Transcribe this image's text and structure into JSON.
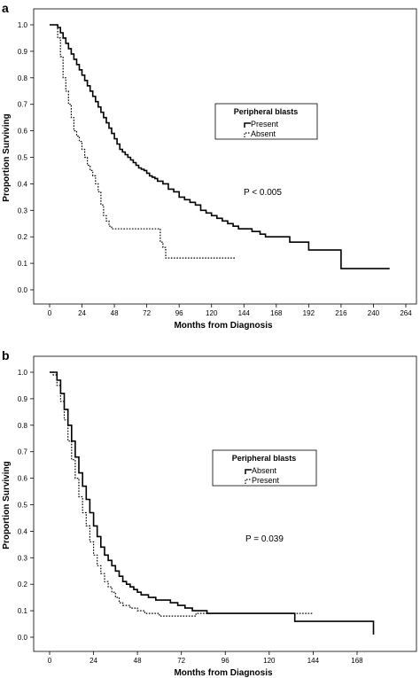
{
  "chart_data": [
    {
      "panel": "a",
      "type": "line",
      "subtype": "kaplan-meier step",
      "xlabel": "Months from Diagnosis",
      "ylabel": "Proportion Surviving",
      "xticks": [
        "0",
        "24",
        "48",
        "72",
        "96",
        "120",
        "144",
        "168",
        "192",
        "216",
        "240",
        "264"
      ],
      "yticks": [
        "0.0",
        "0.1",
        "0.2",
        "0.3",
        "0.4",
        "0.5",
        "0.6",
        "0.7",
        "0.8",
        "0.9",
        "1.0"
      ],
      "xlim": [
        0,
        264
      ],
      "ylim": [
        0,
        1.0
      ],
      "legend": {
        "title": "Peripheral blasts",
        "placement": "center-right"
      },
      "annotation": "P < 0.005",
      "series": [
        {
          "name": "Present",
          "style": "solid",
          "color": "#000000",
          "x": [
            0,
            4,
            6,
            8,
            10,
            12,
            14,
            16,
            18,
            20,
            22,
            24,
            26,
            28,
            30,
            32,
            34,
            36,
            38,
            40,
            42,
            44,
            46,
            48,
            50,
            52,
            54,
            56,
            58,
            60,
            62,
            64,
            66,
            68,
            70,
            72,
            74,
            76,
            78,
            80,
            84,
            88,
            92,
            96,
            100,
            104,
            108,
            112,
            116,
            120,
            124,
            128,
            132,
            136,
            140,
            144,
            150,
            156,
            160,
            168,
            178,
            184,
            192,
            206,
            214,
            216,
            220,
            230,
            240,
            246,
            252
          ],
          "y": [
            1.0,
            1.0,
            0.99,
            0.97,
            0.95,
            0.93,
            0.91,
            0.89,
            0.87,
            0.85,
            0.83,
            0.81,
            0.79,
            0.77,
            0.75,
            0.73,
            0.71,
            0.69,
            0.67,
            0.65,
            0.63,
            0.61,
            0.59,
            0.57,
            0.55,
            0.53,
            0.52,
            0.51,
            0.5,
            0.49,
            0.48,
            0.47,
            0.46,
            0.455,
            0.45,
            0.44,
            0.43,
            0.425,
            0.42,
            0.41,
            0.4,
            0.38,
            0.37,
            0.35,
            0.34,
            0.33,
            0.32,
            0.3,
            0.29,
            0.28,
            0.27,
            0.26,
            0.25,
            0.24,
            0.23,
            0.23,
            0.22,
            0.21,
            0.2,
            0.2,
            0.18,
            0.18,
            0.15,
            0.15,
            0.15,
            0.08,
            0.08,
            0.08,
            0.08,
            0.08,
            0.08
          ]
        },
        {
          "name": "Absent",
          "style": "dotted",
          "color": "#000000",
          "x": [
            0,
            4,
            6,
            8,
            10,
            12,
            14,
            16,
            18,
            20,
            22,
            24,
            26,
            28,
            30,
            32,
            34,
            36,
            38,
            40,
            42,
            44,
            46,
            48,
            56,
            60,
            70,
            78,
            80,
            82,
            84,
            86,
            96,
            110,
            120,
            132,
            138
          ],
          "y": [
            1.0,
            1.0,
            0.95,
            0.88,
            0.8,
            0.75,
            0.7,
            0.65,
            0.6,
            0.58,
            0.56,
            0.53,
            0.5,
            0.47,
            0.45,
            0.43,
            0.4,
            0.37,
            0.32,
            0.28,
            0.26,
            0.24,
            0.23,
            0.23,
            0.23,
            0.23,
            0.23,
            0.23,
            0.23,
            0.18,
            0.16,
            0.12,
            0.12,
            0.12,
            0.12,
            0.12,
            0.12
          ]
        }
      ]
    },
    {
      "panel": "b",
      "type": "line",
      "subtype": "kaplan-meier step",
      "xlabel": "Months from Diagnosis",
      "ylabel": "Proportion Surviving",
      "xticks": [
        "0",
        "24",
        "48",
        "72",
        "96",
        "120",
        "144",
        "168"
      ],
      "yticks": [
        "0.0",
        "0.1",
        "0.2",
        "0.3",
        "0.4",
        "0.5",
        "0.6",
        "0.7",
        "0.8",
        "0.9",
        "1.0"
      ],
      "xlim": [
        0,
        184
      ],
      "ylim": [
        0,
        1.0
      ],
      "legend": {
        "title": "Peripheral blasts",
        "placement": "center-right"
      },
      "annotation": "P = 0.039",
      "series": [
        {
          "name": "Absent",
          "style": "solid",
          "color": "#000000",
          "x": [
            0,
            2,
            4,
            6,
            8,
            10,
            12,
            14,
            16,
            18,
            20,
            22,
            24,
            26,
            28,
            30,
            32,
            34,
            36,
            38,
            40,
            42,
            44,
            46,
            48,
            50,
            54,
            58,
            62,
            66,
            70,
            74,
            78,
            82,
            86,
            90,
            96,
            104,
            112,
            120,
            128,
            132,
            134,
            140,
            150,
            160,
            170,
            176,
            177
          ],
          "y": [
            1.0,
            1.0,
            0.97,
            0.92,
            0.86,
            0.8,
            0.74,
            0.68,
            0.62,
            0.57,
            0.52,
            0.47,
            0.42,
            0.38,
            0.34,
            0.31,
            0.29,
            0.27,
            0.25,
            0.23,
            0.21,
            0.2,
            0.19,
            0.18,
            0.17,
            0.16,
            0.15,
            0.14,
            0.14,
            0.13,
            0.12,
            0.11,
            0.1,
            0.1,
            0.09,
            0.09,
            0.09,
            0.09,
            0.09,
            0.09,
            0.09,
            0.09,
            0.06,
            0.06,
            0.06,
            0.06,
            0.06,
            0.06,
            0.01
          ]
        },
        {
          "name": "Present",
          "style": "dotted",
          "color": "#000000",
          "x": [
            0,
            2,
            4,
            6,
            8,
            10,
            12,
            14,
            16,
            18,
            20,
            22,
            24,
            26,
            28,
            30,
            32,
            34,
            36,
            38,
            40,
            44,
            48,
            52,
            56,
            60,
            66,
            72,
            80,
            90,
            100,
            110,
            120,
            130,
            140,
            144
          ],
          "y": [
            1.0,
            0.99,
            0.95,
            0.89,
            0.82,
            0.74,
            0.67,
            0.6,
            0.53,
            0.47,
            0.42,
            0.36,
            0.31,
            0.27,
            0.24,
            0.21,
            0.19,
            0.17,
            0.15,
            0.13,
            0.12,
            0.11,
            0.1,
            0.09,
            0.09,
            0.08,
            0.08,
            0.08,
            0.09,
            0.09,
            0.09,
            0.09,
            0.09,
            0.09,
            0.09,
            0.09
          ]
        }
      ]
    }
  ],
  "legend_marker_icon": "step-line-icon"
}
